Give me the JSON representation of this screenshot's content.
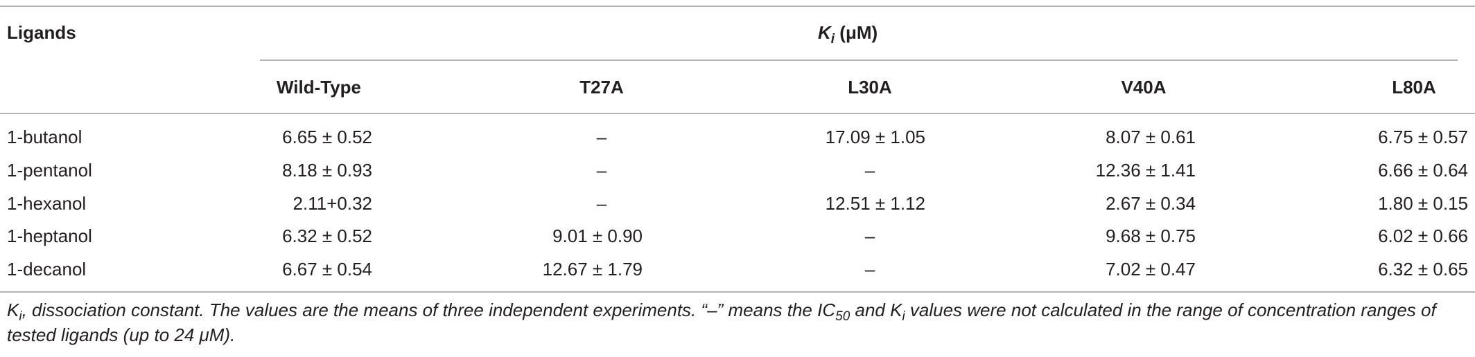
{
  "table": {
    "row_header": "Ligands",
    "group_header": {
      "symbol": "K",
      "subscript": "i",
      "unit": " (μM)"
    },
    "columns": [
      "Wild-Type",
      "T27A",
      "L30A",
      "V40A",
      "L80A"
    ],
    "rows": [
      {
        "ligand": "1-butanol",
        "values": [
          "6.65 ± 0.52",
          "–",
          "17.09 ± 1.05",
          "8.07 ± 0.61",
          "6.75 ± 0.57"
        ]
      },
      {
        "ligand": "1-pentanol",
        "values": [
          "8.18 ± 0.93",
          "–",
          "–",
          "12.36 ± 1.41",
          "6.66 ± 0.64"
        ]
      },
      {
        "ligand": "1-hexanol",
        "values": [
          "2.11+0.32",
          "–",
          "12.51 ± 1.12",
          "2.67 ± 0.34",
          "1.80 ± 0.15"
        ]
      },
      {
        "ligand": "1-heptanol",
        "values": [
          "6.32 ± 0.52",
          "9.01 ± 0.90",
          "–",
          "9.68 ± 0.75",
          "6.02 ± 0.66"
        ]
      },
      {
        "ligand": "1-decanol",
        "values": [
          "6.67 ± 0.54",
          "12.67 ± 1.79",
          "–",
          "7.02 ± 0.47",
          "6.32 ± 0.65"
        ]
      }
    ]
  },
  "footnote": {
    "k": "K",
    "ki_sub": "i",
    "part1": ", dissociation constant. The values are the means of three independent experiments. “–” means the IC",
    "ic_sub": "50",
    "part2": " and ",
    "k2": "K",
    "k2_sub": "i",
    "part3": " values were not calculated in the range of concentration ranges of tested ligands (up to 24 μM)."
  }
}
